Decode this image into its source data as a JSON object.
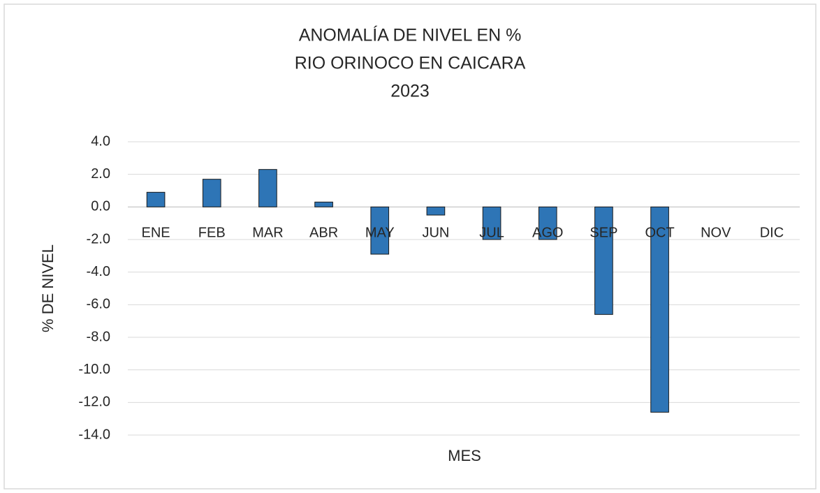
{
  "chart_data": {
    "type": "bar",
    "title": [
      "ANOMALÍA DE NIVEL EN %",
      "RIO ORINOCO EN CAICARA",
      "2023"
    ],
    "x_label": "MES",
    "y_label": "% DE NIVEL",
    "categories": [
      "ENE",
      "FEB",
      "MAR",
      "ABR",
      "MAY",
      "JUN",
      "JUL",
      "AGO",
      "SEP",
      "OCT",
      "NOV",
      "DIC"
    ],
    "values": [
      0.9,
      1.7,
      2.3,
      0.3,
      -2.9,
      -0.5,
      -2.0,
      -2.0,
      -6.6,
      -12.6,
      null,
      null
    ],
    "color": "#2e75b6",
    "ylim": [
      -14,
      4
    ],
    "yticks": [
      {
        "value": -14,
        "label": "-14.0"
      },
      {
        "value": -12,
        "label": "-12.0"
      },
      {
        "value": -10,
        "label": "-10.0"
      },
      {
        "value": -8,
        "label": "-8.0"
      },
      {
        "value": -6,
        "label": "-6.0"
      },
      {
        "value": -4,
        "label": "-4.0"
      },
      {
        "value": -2,
        "label": "-2.0"
      },
      {
        "value": 0,
        "label": "0.0"
      },
      {
        "value": 2,
        "label": "2.0"
      },
      {
        "value": 4,
        "label": "4.0"
      }
    ],
    "grid": true
  }
}
